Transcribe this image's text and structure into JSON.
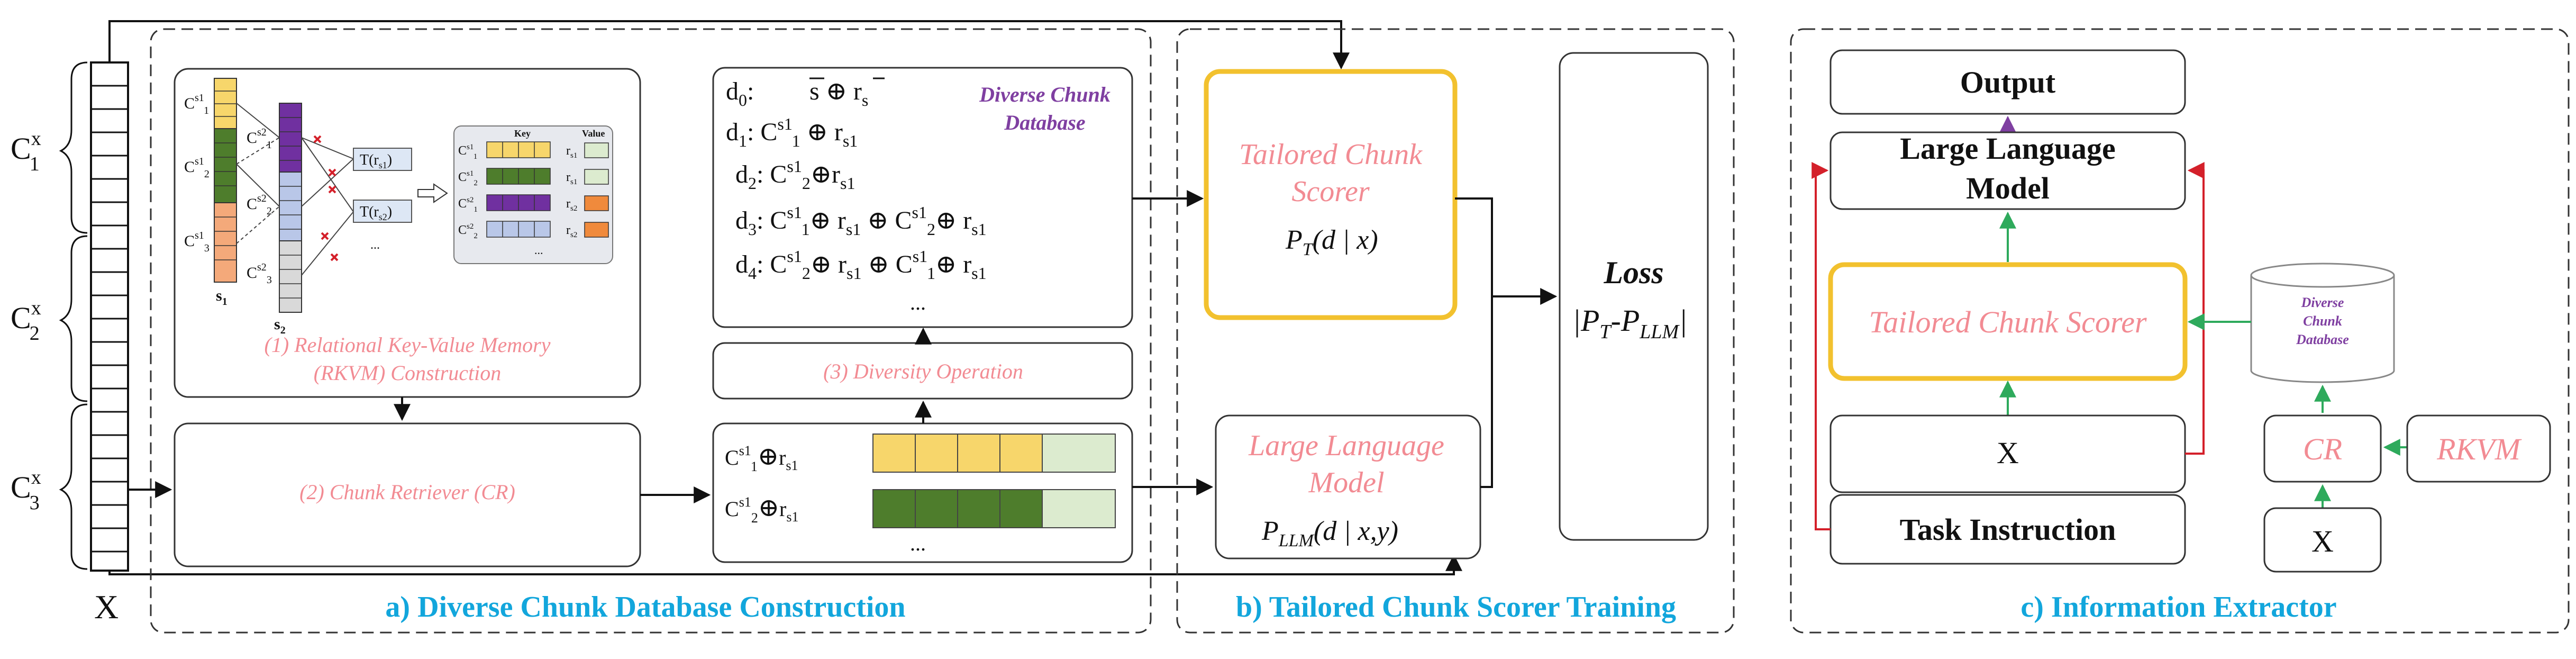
{
  "colors": {
    "pink": "#f28b93",
    "blue": "#12a6dc",
    "purple": "#7f3fa1",
    "yellow_border": "#f2c12e",
    "arrow_green": "#2eaa5c",
    "arrow_red": "#d4202a",
    "chunk_yellow": "#f7d66b",
    "chunk_green": "#4e7d2c",
    "chunk_lightgreen": "#dcebcf",
    "chunk_orange": "#f08a3c",
    "chunk_purple": "#7030a0",
    "chunk_blue": "#b9c7e8",
    "chunk_grey": "#d9d9d9"
  },
  "input": {
    "chunk_labels": [
      "C",
      "C",
      "C"
    ],
    "chunk_label_subs": [
      "1",
      "2",
      "3"
    ],
    "chunk_label_sups": [
      "x",
      "x",
      "x"
    ],
    "x_label": "X"
  },
  "section_a": {
    "caption": "a) Diverse  Chunk Database Construction",
    "rkvm": {
      "caption_line1": "(1) Relational Key-Value Memory",
      "caption_line2": "(RKVM) Construction",
      "s1_label": "s",
      "s1_sub": "1",
      "s2_label": "s",
      "s2_sub": "2",
      "t_label_1": "T(r",
      "t_label_1_sub": "s1",
      "t_label_2": "T(r",
      "t_label_2_sub": "s2",
      "key_header": "Key",
      "value_header": "Value",
      "ellipsis": "..."
    },
    "retriever": {
      "label": "(2) Chunk Retriever (CR)"
    },
    "diversity": {
      "label": "(3) Diversity  Operation"
    },
    "database": {
      "title_line1": "Diverse  Chunk",
      "title_line2": "Database",
      "rows": [
        "d",
        "d",
        "d",
        "d",
        "d"
      ],
      "row_subs": [
        "0",
        "1",
        "2",
        "3",
        "4"
      ],
      "ellipsis": "..."
    },
    "retrieved": {
      "row_prefix": "C",
      "row_sup": "s1",
      "row_subs": [
        "1",
        "2"
      ],
      "op": "⊕",
      "r_label": "r",
      "r_sub": "s1",
      "ellipsis": "..."
    }
  },
  "section_b": {
    "caption": "b) Tailored Chunk Scorer Training",
    "scorer_line1": "Tailored Chunk",
    "scorer_line2": "Scorer",
    "scorer_formula": "P",
    "scorer_formula_sub": "T",
    "scorer_formula_rest": "(d | x)",
    "llm_line1": "Large Language",
    "llm_line2": "Model",
    "llm_formula": "P",
    "llm_formula_sub": "LLM",
    "llm_formula_rest": "(d | x,y)",
    "loss_title": "Loss",
    "loss_formula": "|P",
    "loss_sub1": "T",
    "loss_mid": "-P",
    "loss_sub2": "LLM",
    "loss_end": "|"
  },
  "section_c": {
    "caption": "c) Information Extractor",
    "output": "Output",
    "llm_line1": "Large Language",
    "llm_line2": "Model",
    "scorer": "Tailored Chunk Scorer",
    "x": "X",
    "task": "Task Instruction",
    "db_line1": "Diverse",
    "db_line2": "Chunk",
    "db_line3": "Database",
    "cr": "CR",
    "rkvm": "RKVM",
    "x2": "X"
  }
}
